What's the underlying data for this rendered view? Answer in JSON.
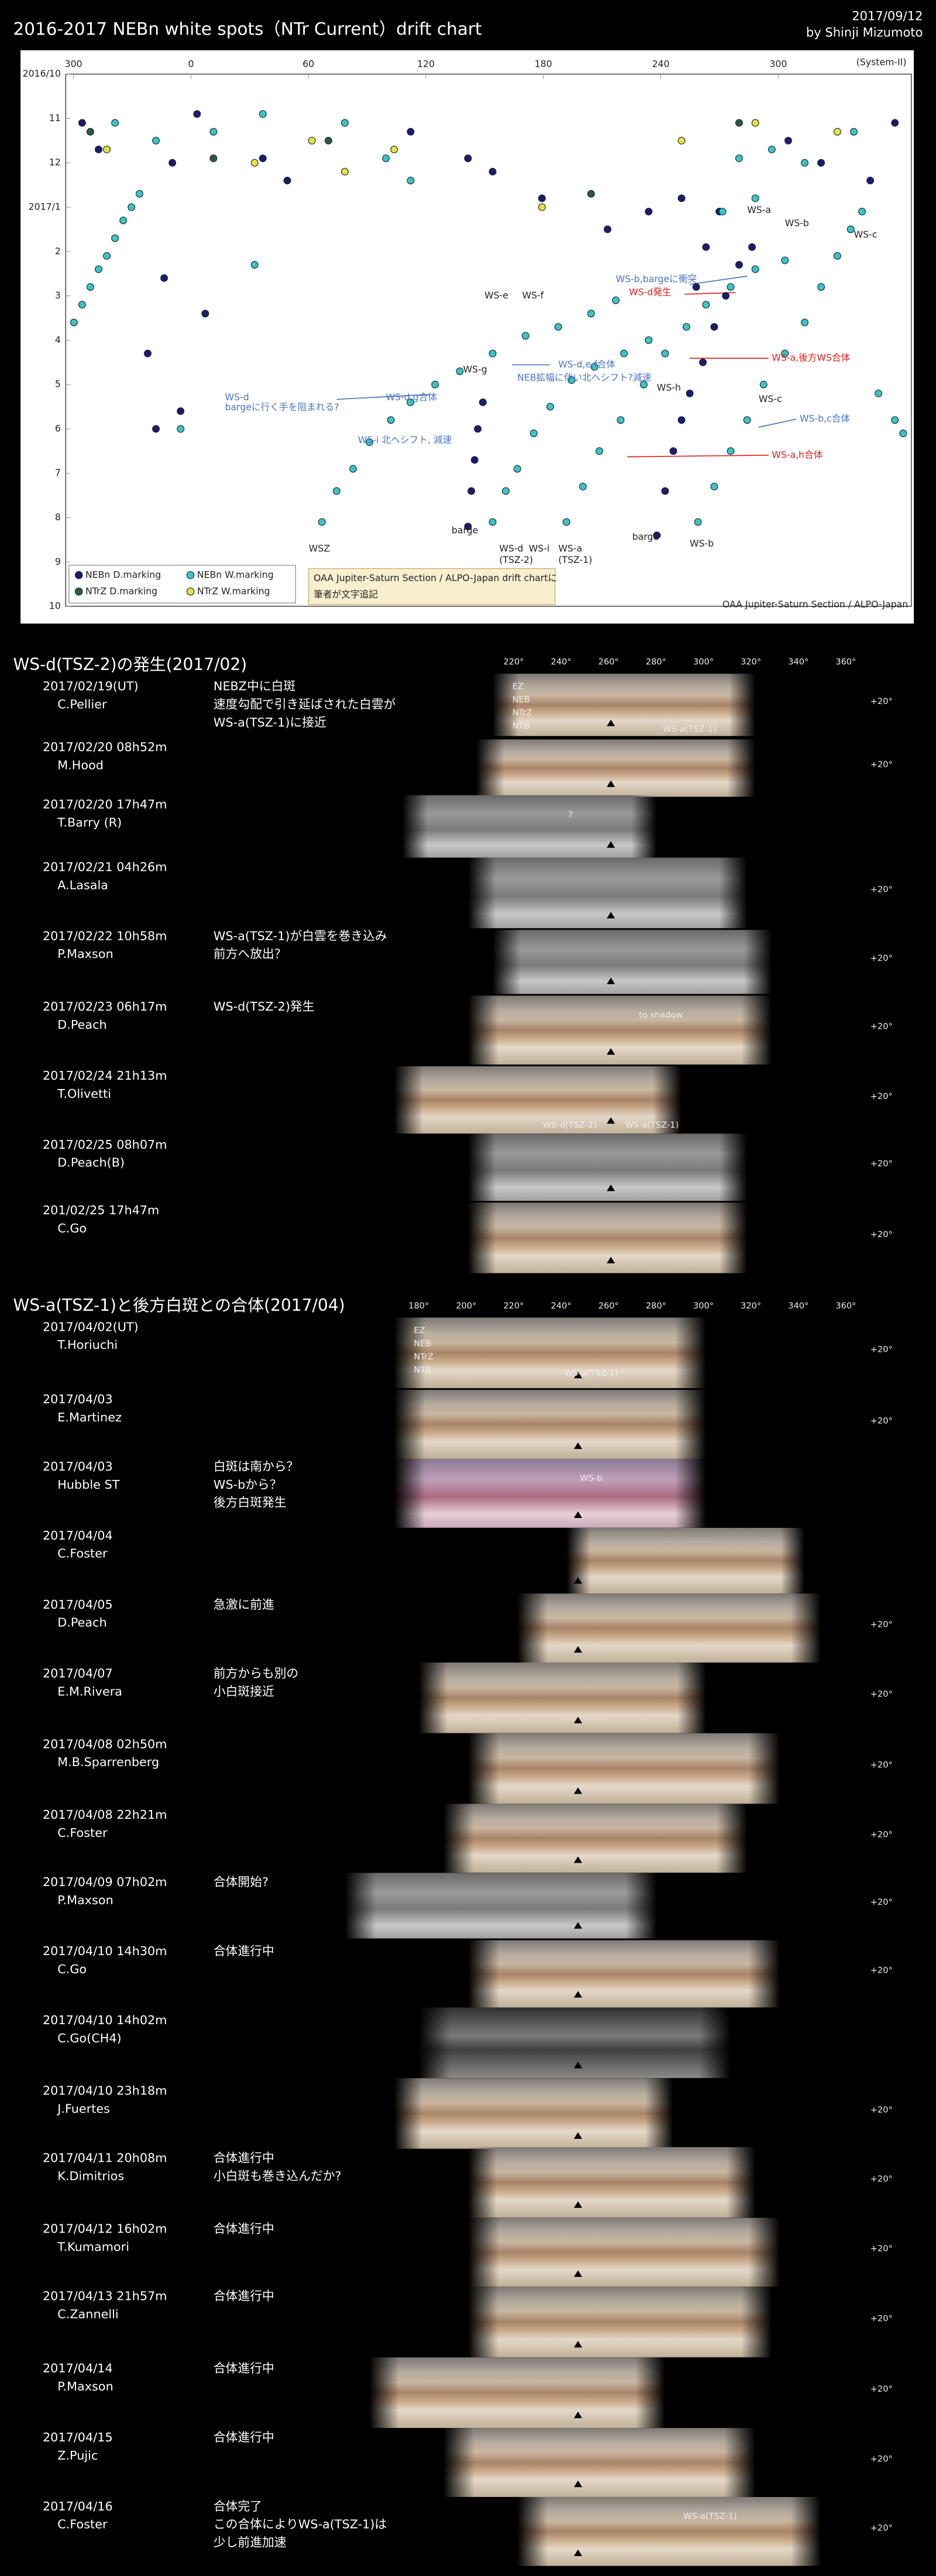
{
  "header": {
    "title": "2016-2017 NEBn white spots（NTr Current）drift chart",
    "date": "2017/09/12",
    "author": "by Shinji Mizumoto"
  },
  "chart_data": {
    "type": "scatter",
    "axis_note": "(System-II)",
    "xlim": [
      -64,
      368
    ],
    "xticks": [
      {
        "value": -60,
        "label": "300"
      },
      0,
      60,
      120,
      180,
      240,
      300
    ],
    "ylim": [
      0,
      12
    ],
    "yticks": [
      {
        "value": 0,
        "label": "2016/10"
      },
      {
        "value": 1,
        "label": "11"
      },
      {
        "value": 2,
        "label": "12"
      },
      {
        "value": 3,
        "label": "2017/1"
      },
      {
        "value": 4,
        "label": "2"
      },
      {
        "value": 5,
        "label": "3"
      },
      {
        "value": 6,
        "label": "4"
      },
      {
        "value": 7,
        "label": "5"
      },
      {
        "value": 8,
        "label": "6"
      },
      {
        "value": 9,
        "label": "7"
      },
      {
        "value": 10,
        "label": "8"
      },
      {
        "value": 11,
        "label": "9"
      },
      {
        "value": 12,
        "label": "10"
      }
    ],
    "y_inverted": true,
    "series": [
      {
        "name": "NEBn D.marking",
        "color": "#1c1c6e",
        "x": [
          238,
          242.2,
          246.4,
          250.6,
          254.8,
          261.5,
          267.3,
          273.2,
          280,
          286.6,
          141.5,
          143.2,
          144.9,
          146.5,
          149.1,
          258.1,
          263.1,
          269.9,
          -55.6,
          -47.2,
          3.1,
          -9.5,
          36.7,
          49.2,
          112.2,
          141.5,
          154.1,
          179.3,
          212.8,
          233.8,
          250.6,
          305.1,
          321.9,
          347,
          359.6,
          -22.1,
          -17.9,
          -5.3,
          7.3,
          -13.7
        ],
        "values": [
          10.4,
          9.4,
          8.5,
          7.8,
          7.2,
          6.5,
          5.7,
          5.0,
          4.3,
          3.9,
          10.2,
          9.4,
          8.7,
          8.0,
          7.4,
          4.8,
          3.9,
          3.1,
          1.1,
          1.7,
          0.9,
          2.0,
          1.9,
          2.4,
          1.3,
          1.9,
          2.2,
          2.8,
          3.5,
          3.1,
          2.8,
          1.5,
          2.0,
          2.4,
          1.1,
          6.3,
          8.0,
          7.6,
          5.4,
          4.6
        ]
      },
      {
        "name": "NEBn W.marking",
        "color": "#3cc4c4",
        "x": [
          -59.8,
          -55.6,
          -51.4,
          -47.2,
          -43,
          -38.8,
          -34.6,
          -30.4,
          -26.3,
          66.9,
          74.4,
          82.8,
          91.2,
          102.1,
          112.1,
          124.7,
          137.3,
          154.1,
          170.9,
          187.6,
          204.4,
          217,
          154.1,
          160.8,
          166.7,
          175.1,
          183.5,
          194.4,
          206.1,
          221.2,
          233.8,
          191.8,
          200.2,
          208.6,
          219.5,
          231.3,
          242.2,
          253.1,
          263.1,
          275.7,
          288.3,
          303.4,
          259,
          267.3,
          275.7,
          284.1,
          292.5,
          303.4,
          313.5,
          321.9,
          330.2,
          337,
          342.8,
          351.2,
          359.6,
          363.8,
          280,
          296.7,
          313.5,
          338.6,
          288.3,
          271.5,
          -38.8,
          -17.9,
          11.5,
          36.7,
          78.6,
          99.6,
          112.2,
          32.5,
          -5.3
        ],
        "values": [
          5.6,
          5.2,
          4.8,
          4.4,
          4.1,
          3.7,
          3.3,
          3.0,
          2.7,
          10.1,
          9.4,
          8.9,
          8.3,
          7.8,
          7.4,
          7.0,
          6.7,
          6.3,
          5.9,
          5.7,
          5.4,
          5.1,
          10.1,
          9.4,
          8.9,
          8.1,
          7.5,
          6.9,
          6.6,
          6.3,
          6.0,
          10.1,
          9.3,
          8.5,
          7.8,
          7.0,
          6.3,
          5.7,
          5.2,
          4.8,
          4.4,
          4.2,
          10.1,
          9.3,
          8.5,
          7.8,
          7.0,
          6.3,
          5.6,
          4.8,
          4.1,
          3.5,
          3.1,
          7.2,
          7.8,
          8.1,
          1.9,
          1.7,
          2.0,
          1.3,
          2.8,
          3.1,
          1.1,
          1.5,
          1.3,
          0.9,
          1.1,
          1.9,
          2.4,
          4.3,
          8.0
        ]
      },
      {
        "name": "NTrZ D.marking",
        "color": "#2e5a3c",
        "x": [
          -51.4,
          11.5,
          70.2,
          280,
          204.4
        ],
        "values": [
          1.3,
          1.9,
          1.5,
          1.1,
          2.7
        ]
      },
      {
        "name": "NTrZ W.marking",
        "color": "#e8e040",
        "x": [
          -43,
          32.5,
          61.8,
          78.6,
          179.3,
          103.8,
          250.6,
          288.3,
          330.2
        ],
        "values": [
          1.7,
          2.0,
          1.5,
          2.2,
          3.0,
          1.7,
          1.5,
          1.1,
          1.3
        ]
      }
    ],
    "annotations": [
      {
        "text": "WS-a",
        "color": "#222"
      },
      {
        "text": "WS-b",
        "color": "#222"
      },
      {
        "text": "WS-c",
        "color": "#222"
      },
      {
        "text": "WS-e",
        "color": "#222"
      },
      {
        "text": "WS-f",
        "color": "#222"
      },
      {
        "text": "WS-b,bargeに衝突",
        "color": "#4a74c8"
      },
      {
        "text": "WS-d発生",
        "color": "#e02020"
      },
      {
        "text": "WS-g",
        "color": "#222"
      },
      {
        "text": "WS-d,e,f合体",
        "color": "#4a74c8"
      },
      {
        "text": "NEB拡幅に伴い北へシフト?減速",
        "color": "#4a74c8"
      },
      {
        "text": "WS-h",
        "color": "#222"
      },
      {
        "text": "WS-a,後方WS合体",
        "color": "#e02020"
      },
      {
        "text": "WS-d",
        "color": "#4a74c8"
      },
      {
        "text": "bargeに行く手を阻まれる?",
        "color": "#4a74c8"
      },
      {
        "text": "WS-d,g合体",
        "color": "#4a74c8"
      },
      {
        "text": "WS-c",
        "color": "#222"
      },
      {
        "text": "WS-b,c合体",
        "color": "#4a74c8"
      },
      {
        "text": "WS-i 北へシフト, 減速",
        "color": "#4a74c8"
      },
      {
        "text": "WS-a,h合体",
        "color": "#e02020"
      },
      {
        "text": "WSZ",
        "color": "#222"
      },
      {
        "text": "barge",
        "color": "#222"
      },
      {
        "text": "WS-d",
        "color": "#222"
      },
      {
        "text": "(TSZ-2)",
        "color": "#222"
      },
      {
        "text": "WS-i",
        "color": "#222"
      },
      {
        "text": "WS-a",
        "color": "#222"
      },
      {
        "text": "(TSZ-1)",
        "color": "#222"
      },
      {
        "text": "barge",
        "color": "#222"
      },
      {
        "text": "WS-b",
        "color": "#222"
      }
    ],
    "note": [
      "OAA Jupiter-Saturn Section / ALPO-Japan drift chartに",
      "筆者が文字追記"
    ],
    "credit": "OAA Jupiter-Saturn Section / ALPO-Japan"
  },
  "sections": [
    {
      "title": "WS-d(TSZ-2)の発生(2017/02)",
      "scale": [
        "220°",
        "240°",
        "260°",
        "280°",
        "300°",
        "320°",
        "340°",
        "360°"
      ],
      "lat_label": "+20°",
      "entries": [
        {
          "date": "2017/02/19(UT)",
          "observer": "C.Pellier",
          "notes": [
            "NEBZ中に白斑",
            "速度勾配で引き延ばされた白雲が",
            "WS-a(TSZ-1)に接近"
          ],
          "labels": [
            "EZ",
            "NEB",
            "NTrZ",
            "NTB",
            "WS-a(TSZ-1)"
          ]
        },
        {
          "date": "2017/02/20 08h52m",
          "observer": "M.Hood"
        },
        {
          "date": "2017/02/20 17h47m",
          "observer": "T.Barry (R)",
          "labels": [
            "?"
          ]
        },
        {
          "date": "2017/02/21 04h26m",
          "observer": "A.Lasala"
        },
        {
          "date": "2017/02/22 10h58m",
          "observer": "P.Maxson",
          "notes": [
            "WS-a(TSZ-1)が白雲を巻き込み",
            "前方へ放出？"
          ]
        },
        {
          "date": "2017/02/23 06h17m",
          "observer": "D.Peach",
          "notes": [
            "WS-d(TSZ-2)発生"
          ],
          "labels": [
            "to shadow"
          ]
        },
        {
          "date": "2017/02/24 21h13m",
          "observer": "T.Olivetti",
          "labels": [
            "WS-d(TSZ-2)",
            "WS-a(TSZ-1)"
          ]
        },
        {
          "date": "2017/02/25 08h07m",
          "observer": "D.Peach(B)"
        },
        {
          "date": "201/02/25 17h47m",
          "observer": "C.Go"
        }
      ]
    },
    {
      "title": "WS-a(TSZ-1)と後方白斑との合体(2017/04)",
      "scale": [
        "180°",
        "200°",
        "220°",
        "240°",
        "260°",
        "280°",
        "300°",
        "320°",
        "340°",
        "360°"
      ],
      "lat_label": "+20°",
      "entries": [
        {
          "date": "2017/04/02(UT)",
          "observer": "T.Horiuchi",
          "labels": [
            "EZ",
            "NEB",
            "NTrZ",
            "NTB",
            "WS-a(TSZ-1)"
          ]
        },
        {
          "date": "2017/04/03",
          "observer": "E.Martinez"
        },
        {
          "date": "2017/04/03",
          "observer": "Hubble ST",
          "notes": [
            "白斑は南から？",
            "WS-bから？",
            "後方白斑発生"
          ],
          "labels": [
            "WS-b"
          ]
        },
        {
          "date": "2017/04/04",
          "observer": "C.Foster"
        },
        {
          "date": "2017/04/05",
          "observer": "D.Peach",
          "notes": [
            "急激に前進"
          ]
        },
        {
          "date": "2017/04/07",
          "observer": "E.M.Rivera",
          "notes": [
            "前方からも別の",
            "小白斑接近"
          ]
        },
        {
          "date": "2017/04/08 02h50m",
          "observer": "M.B.Sparrenberg"
        },
        {
          "date": "2017/04/08 22h21m",
          "observer": "C.Foster"
        },
        {
          "date": "2017/04/09 07h02m",
          "observer": "P.Maxson",
          "notes": [
            "合体開始?"
          ]
        },
        {
          "date": "2017/04/10 14h30m",
          "observer": "C.Go",
          "notes": [
            "合体進行中"
          ]
        },
        {
          "date": "2017/04/10 14h02m",
          "observer": "C.Go(CH4)"
        },
        {
          "date": "2017/04/10 23h18m",
          "observer": "J.Fuertes"
        },
        {
          "date": "2017/04/11 20h08m",
          "observer": "K.Dimitrios",
          "notes": [
            "合体進行中",
            "小白斑も巻き込んだか?"
          ]
        },
        {
          "date": "2017/04/12 16h02m",
          "observer": "T.Kumamori",
          "notes": [
            "合体進行中"
          ]
        },
        {
          "date": "2017/04/13 21h57m",
          "observer": "C.Zannelli",
          "notes": [
            "合体進行中"
          ]
        },
        {
          "date": "2017/04/14",
          "observer": "P.Maxson",
          "notes": [
            "合体進行中"
          ]
        },
        {
          "date": "2017/04/15",
          "observer": "Z.Pujic",
          "notes": [
            "合体進行中"
          ]
        },
        {
          "date": "2017/04/16",
          "observer": "C.Foster",
          "notes": [
            "合体完了",
            "この合体によりWS-a(TSZ-1)は",
            "少し前進加速"
          ],
          "labels": [
            "WS-a(TSZ-1)"
          ]
        }
      ]
    }
  ]
}
